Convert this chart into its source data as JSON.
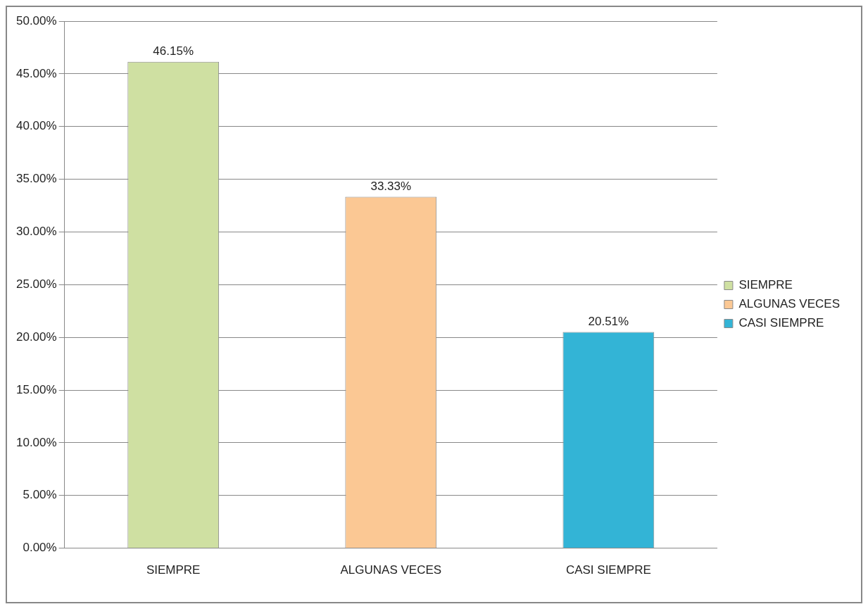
{
  "chart_data": {
    "type": "bar",
    "categories": [
      "SIEMPRE",
      "ALGUNAS VECES",
      "CASI SIEMPRE"
    ],
    "series": [
      {
        "name": "SIEMPRE",
        "color": "#cfe0a2",
        "values": [
          46.15,
          null,
          null
        ],
        "value_labels": [
          "46.15%",
          null,
          null
        ]
      },
      {
        "name": "ALGUNAS VECES",
        "color": "#fbc894",
        "values": [
          null,
          33.33,
          null
        ],
        "value_labels": [
          null,
          "33.33%",
          null
        ]
      },
      {
        "name": "CASI SIEMPRE",
        "color": "#33b4d6",
        "values": [
          null,
          null,
          20.51
        ],
        "value_labels": [
          null,
          null,
          "20.51%"
        ]
      }
    ],
    "ylim": [
      0,
      50
    ],
    "yticks": [
      {
        "value": 0,
        "label": "0.00%"
      },
      {
        "value": 5,
        "label": "5.00%"
      },
      {
        "value": 10,
        "label": "10.00%"
      },
      {
        "value": 15,
        "label": "15.00%"
      },
      {
        "value": 20,
        "label": "20.00%"
      },
      {
        "value": 25,
        "label": "25.00%"
      },
      {
        "value": 30,
        "label": "30.00%"
      },
      {
        "value": 35,
        "label": "35.00%"
      },
      {
        "value": 40,
        "label": "40.00%"
      },
      {
        "value": 45,
        "label": "45.00%"
      },
      {
        "value": 50,
        "label": "50.00%"
      }
    ],
    "grid": "y",
    "legend": "right"
  }
}
